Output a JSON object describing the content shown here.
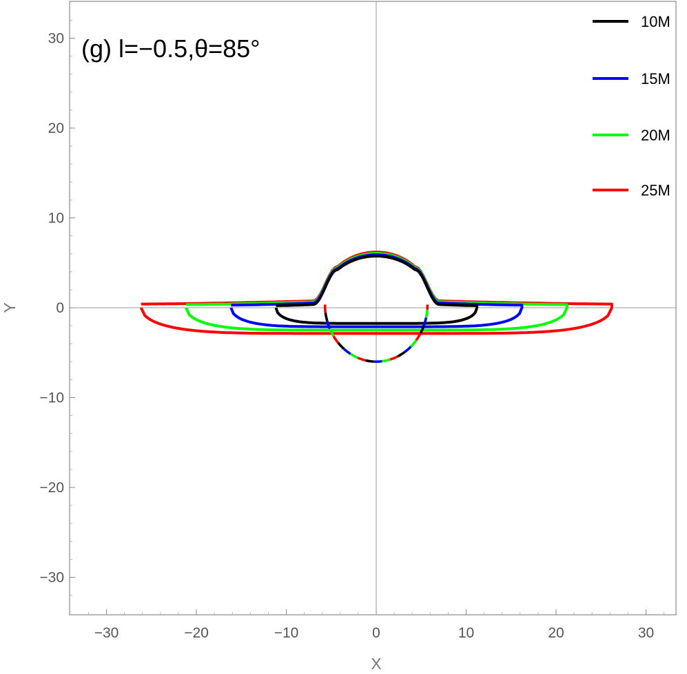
{
  "chart_data": {
    "type": "line",
    "title": "(g) l=−0.5,θ=85°",
    "xlabel": "X",
    "ylabel": "Y",
    "xlim": [
      -34,
      34
    ],
    "ylim": [
      -34,
      34
    ],
    "xticks": [
      -30,
      -20,
      -10,
      0,
      10,
      20,
      30
    ],
    "yticks": [
      -30,
      -20,
      -10,
      0,
      10,
      20,
      30
    ],
    "tick_labels": [
      "−30",
      "−20",
      "−10",
      "0",
      "10",
      "20",
      "30"
    ],
    "grid": false,
    "legend_position": "top-right",
    "series": [
      {
        "name": "10M",
        "color": "#000000",
        "outer_x": 11.2
      },
      {
        "name": "15M",
        "color": "#0000ff",
        "outer_x": 16.2
      },
      {
        "name": "20M",
        "color": "#00ff00",
        "outer_x": 21.2
      },
      {
        "name": "25M",
        "color": "#ff0000",
        "outer_x": 26.2
      }
    ]
  }
}
